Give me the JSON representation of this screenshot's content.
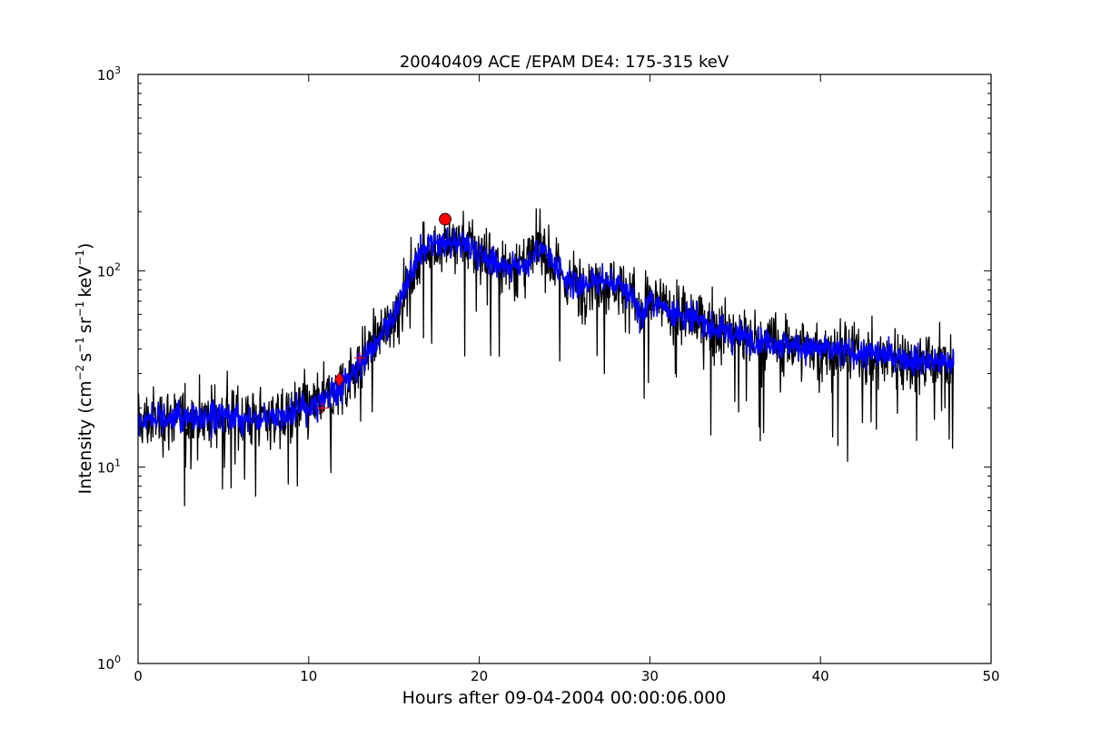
{
  "chart_data": {
    "type": "line",
    "title": "20040409 ACE /EPAM DE4: 175-315 keV",
    "xlabel": "Hours after 09-04-2004 00:00:06.000",
    "ylabel": {
      "prefix": "Intensity (cm",
      "exp1": "−2",
      "s": "s",
      "exp2": "−1",
      "sr": "sr",
      "exp3": "−1",
      "kev": "keV",
      "exp4": "−1",
      "suffix": ")"
    },
    "xlim": [
      0,
      50
    ],
    "ylim": [
      1,
      1000
    ],
    "yscale": "log",
    "grid": false,
    "x_ticks": [
      0,
      10,
      20,
      30,
      40,
      50
    ],
    "x_tick_labels": [
      "0",
      "10",
      "20",
      "30",
      "40",
      "50"
    ],
    "y_ticks": [
      1,
      10,
      100,
      1000
    ],
    "y_tick_labels": [
      {
        "base": "10",
        "exp": "0"
      },
      {
        "base": "10",
        "exp": "1"
      },
      {
        "base": "10",
        "exp": "2"
      },
      {
        "base": "10",
        "exp": "3"
      }
    ],
    "series": [
      {
        "color": "#000000",
        "style": "raw-noisy",
        "x": [
          0,
          2,
          4,
          6,
          8,
          9,
          10,
          11,
          12,
          13,
          14,
          15,
          16,
          16.5,
          17,
          18,
          19,
          20,
          21,
          22,
          23,
          23.5,
          24,
          25,
          26,
          27,
          28,
          29,
          29.5,
          30,
          31,
          32,
          33,
          34,
          35,
          36,
          38,
          40,
          42,
          44,
          46,
          47.8
        ],
        "y": [
          17,
          18,
          18,
          18,
          18,
          19,
          20,
          22,
          26,
          34,
          45,
          58,
          95,
          120,
          130,
          135,
          140,
          125,
          110,
          105,
          110,
          135,
          120,
          88,
          85,
          90,
          85,
          75,
          58,
          70,
          65,
          58,
          55,
          50,
          47,
          45,
          42,
          40,
          38,
          37,
          35,
          34
        ]
      },
      {
        "color": "#0000ff",
        "style": "smoothed",
        "x": [
          0,
          2,
          4,
          6,
          8,
          9,
          10,
          11,
          12,
          13,
          14,
          15,
          16,
          16.5,
          17,
          18,
          19,
          20,
          21,
          22,
          23,
          23.5,
          24,
          25,
          26,
          27,
          28,
          29,
          29.5,
          30,
          31,
          32,
          33,
          34,
          35,
          36,
          38,
          40,
          42,
          44,
          46,
          47.8
        ],
        "y": [
          17,
          18,
          18,
          18,
          18,
          19,
          20,
          22,
          26,
          34,
          45,
          58,
          95,
          120,
          130,
          135,
          140,
          125,
          110,
          105,
          110,
          135,
          120,
          88,
          85,
          90,
          85,
          75,
          58,
          70,
          65,
          58,
          55,
          50,
          47,
          45,
          42,
          40,
          38,
          37,
          35,
          34
        ]
      }
    ],
    "markers": [
      {
        "shape": "circle",
        "x": 18.0,
        "y": 183,
        "color": "#ff0000"
      },
      {
        "shape": "diamond",
        "x": 11.8,
        "y": 28,
        "color": "#ff0000"
      },
      {
        "shape": "plus",
        "x": 10.8,
        "y": 20,
        "color": "#ff0000"
      },
      {
        "shape": "plus",
        "x": 13.0,
        "y": 36,
        "color": "#ff0000"
      }
    ]
  }
}
